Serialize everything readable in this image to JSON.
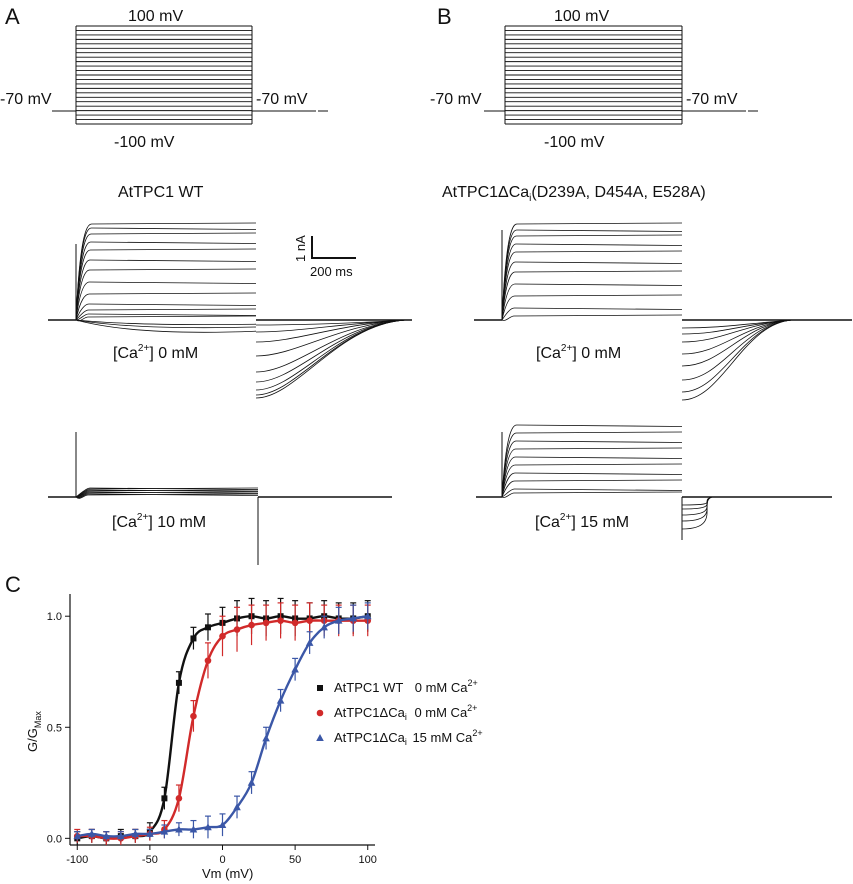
{
  "panels": {
    "A": {
      "letter": "A",
      "protocol": {
        "top": "100 mV",
        "hold_left": "-70 mV",
        "hold_right": "-70 mV",
        "bottom": "-100 mV"
      },
      "title": "AtTPC1 WT",
      "scale_bar": {
        "current": "1 nA",
        "time": "200 ms"
      },
      "cond1": {
        "pre": "[Ca",
        "sup": "2+",
        "post": "] 0 mM"
      },
      "cond2": {
        "pre": "[Ca",
        "sup": "2+",
        "post": "] 10 mM"
      }
    },
    "B": {
      "letter": "B",
      "protocol": {
        "top": "100 mV",
        "hold_left": "-70 mV",
        "hold_right": "-70 mV",
        "bottom": "-100 mV"
      },
      "title": {
        "main": "AtTPC1ΔCa",
        "sub": "i",
        "rest": "(D239A, D454A, E528A)"
      },
      "cond1": {
        "pre": "[Ca",
        "sup": "2+",
        "post": "] 0 mM"
      },
      "cond2": {
        "pre": "[Ca",
        "sup": "2+",
        "post": "] 15 mM"
      }
    },
    "C": {
      "letter": "C"
    }
  },
  "chart_data": {
    "type": "scatter",
    "xlabel": "Vm (mV)",
    "ylabel": {
      "main": "G/G",
      "sub": "Max"
    },
    "xlim": [
      -105,
      105
    ],
    "ylim": [
      -0.03,
      1.1
    ],
    "xticks": [
      -100,
      -50,
      0,
      50,
      100
    ],
    "yticks": [
      0.0,
      0.5,
      1.0
    ],
    "ytick_labels": [
      "0.0",
      "0.5",
      "1.0"
    ],
    "x": [
      -100,
      -90,
      -80,
      -70,
      -60,
      -50,
      -40,
      -30,
      -20,
      -10,
      0,
      10,
      20,
      30,
      40,
      50,
      60,
      70,
      80,
      90,
      100
    ],
    "legend_position": "right",
    "series": [
      {
        "name": {
          "main": "AtTPC1 WT",
          "sub": "",
          "conc": "0 mM Ca",
          "sup": "2+"
        },
        "color": "#111111",
        "marker": "square",
        "values": [
          0.0,
          0.01,
          0.0,
          0.01,
          0.01,
          0.03,
          0.18,
          0.7,
          0.9,
          0.95,
          0.97,
          0.99,
          1.0,
          0.99,
          1.0,
          0.99,
          0.99,
          1.0,
          0.99,
          0.99,
          1.0
        ],
        "errors": [
          0.03,
          0.03,
          0.03,
          0.03,
          0.03,
          0.04,
          0.05,
          0.05,
          0.05,
          0.06,
          0.07,
          0.08,
          0.08,
          0.08,
          0.08,
          0.08,
          0.07,
          0.07,
          0.07,
          0.07,
          0.07
        ]
      },
      {
        "name": {
          "main": "AtTPC1ΔCa",
          "sub": "i",
          "conc": "0 mM Ca",
          "sup": "2+"
        },
        "color": "#d12a2a",
        "marker": "circle",
        "values": [
          0.01,
          0.01,
          0.0,
          0.0,
          0.01,
          0.02,
          0.04,
          0.18,
          0.55,
          0.8,
          0.91,
          0.94,
          0.96,
          0.97,
          0.98,
          0.97,
          0.98,
          0.98,
          0.98,
          0.98,
          0.98
        ],
        "errors": [
          0.03,
          0.03,
          0.03,
          0.03,
          0.03,
          0.03,
          0.04,
          0.06,
          0.07,
          0.08,
          0.09,
          0.1,
          0.09,
          0.08,
          0.08,
          0.08,
          0.08,
          0.07,
          0.07,
          0.07,
          0.07
        ]
      },
      {
        "name": {
          "main": "AtTPC1ΔCa",
          "sub": "i",
          "conc": "15 mM Ca",
          "sup": "2+"
        },
        "color": "#3b57a7",
        "marker": "triangle",
        "values": [
          0.01,
          0.02,
          0.01,
          0.01,
          0.02,
          0.02,
          0.03,
          0.04,
          0.04,
          0.05,
          0.06,
          0.14,
          0.25,
          0.45,
          0.62,
          0.76,
          0.88,
          0.95,
          0.98,
          0.99,
          1.0
        ],
        "errors": [
          0.02,
          0.02,
          0.02,
          0.02,
          0.02,
          0.02,
          0.03,
          0.03,
          0.04,
          0.05,
          0.05,
          0.05,
          0.05,
          0.05,
          0.05,
          0.05,
          0.05,
          0.05,
          0.06,
          0.06,
          0.06
        ]
      }
    ]
  }
}
